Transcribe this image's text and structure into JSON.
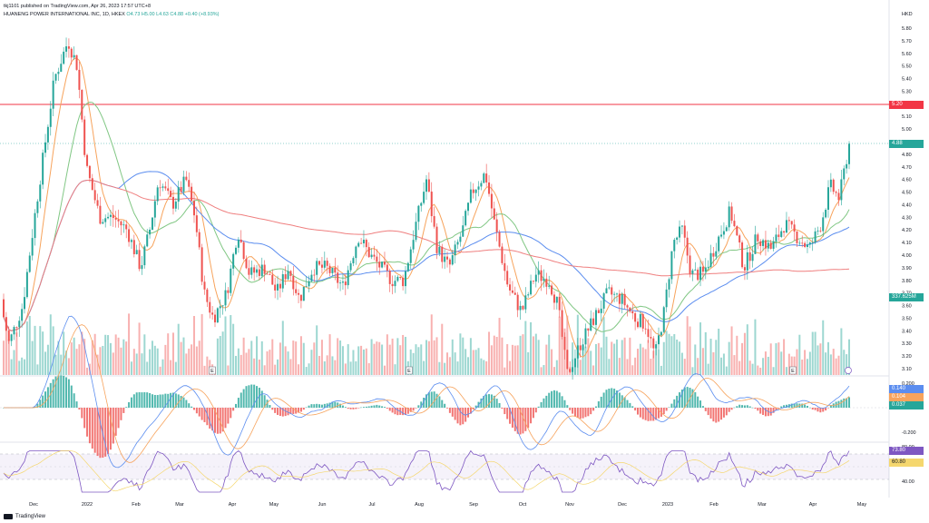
{
  "header": {
    "published": "tkj1101 published on TradingView.com, Apr 26, 2023 17:57 UTC+8",
    "symbol_line": "HUANENG POWER INTERNATIONAL INC, 1D, HKEX",
    "ohlc": "O4.73  H5.00  L4.63  C4.88  +0.40 (+8.93%)"
  },
  "currency": "HKD",
  "price_axis": {
    "ticks": [
      "5.80",
      "5.70",
      "5.60",
      "5.50",
      "5.40",
      "5.30",
      "5.20",
      "5.10",
      "5.00",
      "4.90",
      "4.80",
      "4.70",
      "4.60",
      "4.50",
      "4.40",
      "4.30",
      "4.20",
      "4.10",
      "4.00",
      "3.90",
      "3.80",
      "3.70",
      "3.60",
      "3.50",
      "3.40",
      "3.30",
      "3.20",
      "3.10"
    ],
    "hline_label": "5.20",
    "last_label": "4.88",
    "volume_label": "337.625M"
  },
  "macd": {
    "ticks": [
      "0.200",
      "0.000",
      "-0.200"
    ],
    "labels": [
      "0.140",
      "0.104",
      "0.037"
    ]
  },
  "rsi": {
    "ticks": [
      "80.00",
      "40.00"
    ],
    "labels": [
      "73.80",
      "60.80"
    ]
  },
  "time_axis": [
    "Dec",
    "2022",
    "Feb",
    "Mar",
    "Apr",
    "May",
    "Jun",
    "Jul",
    "Aug",
    "Sep",
    "Oct",
    "Nov",
    "Dec",
    "2023",
    "Feb",
    "Mar",
    "Apr",
    "May"
  ],
  "earnings_markers": [
    "E",
    "E",
    "E"
  ],
  "colors": {
    "up": "#26a69a",
    "down": "#ef5350",
    "hline": "#f23645",
    "ma_short": "#f7a35c",
    "ma_mid": "#81c784",
    "ma_long": "#5b8def",
    "ma_200": "#ef7f7f",
    "rsi": "#7e57c2",
    "rsi_ma": "#f5d76e"
  },
  "logo_text": "TradingView"
}
